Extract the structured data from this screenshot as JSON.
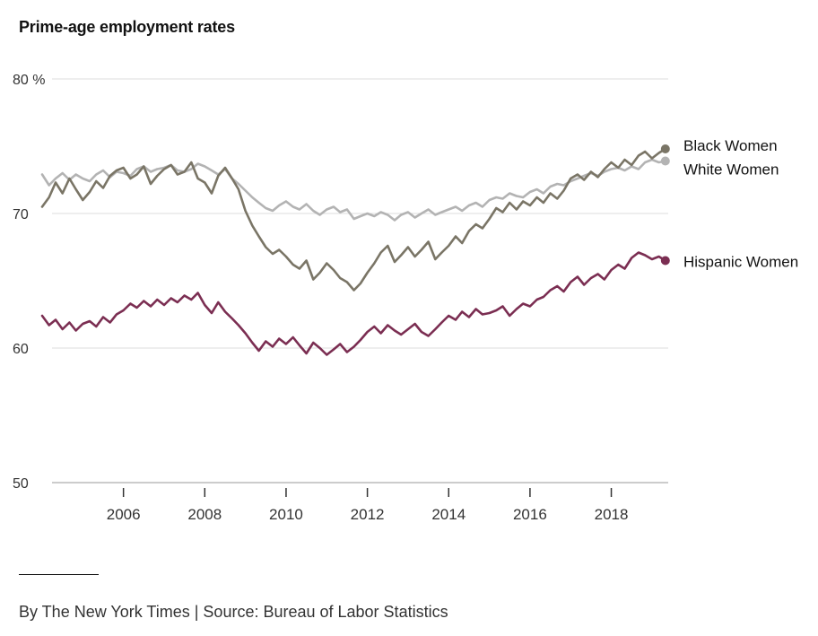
{
  "header": {
    "title": "Prime-age employment rates"
  },
  "footer": {
    "credit": "By The New York Times | Source: Bureau of Labor Statistics"
  },
  "chart_data": {
    "type": "line",
    "title": "Prime-age employment rates",
    "xlabel": "",
    "ylabel": "",
    "xlim": [
      2004.0,
      2019.4
    ],
    "ylim": [
      50,
      80
    ],
    "y_ticks": [
      {
        "value": 80,
        "label": "80 %"
      },
      {
        "value": 70,
        "label": "70"
      },
      {
        "value": 60,
        "label": "60"
      },
      {
        "value": 50,
        "label": "50"
      }
    ],
    "x_ticks": [
      {
        "value": 2006,
        "label": "2006"
      },
      {
        "value": 2008,
        "label": "2008"
      },
      {
        "value": 2010,
        "label": "2010"
      },
      {
        "value": 2012,
        "label": "2012"
      },
      {
        "value": 2014,
        "label": "2014"
      },
      {
        "value": 2016,
        "label": "2016"
      },
      {
        "value": 2018,
        "label": "2018"
      }
    ],
    "grid": true,
    "legend": "direct labels at line ends (right)",
    "series": [
      {
        "name": "White Women",
        "color": "#b3b3b3",
        "x": [
          2004.0,
          2004.17,
          2004.33,
          2004.5,
          2004.67,
          2004.83,
          2005.0,
          2005.17,
          2005.33,
          2005.5,
          2005.67,
          2005.83,
          2006.0,
          2006.17,
          2006.33,
          2006.5,
          2006.67,
          2006.83,
          2007.0,
          2007.17,
          2007.33,
          2007.5,
          2007.67,
          2007.83,
          2008.0,
          2008.17,
          2008.33,
          2008.5,
          2008.67,
          2008.83,
          2009.0,
          2009.17,
          2009.33,
          2009.5,
          2009.67,
          2009.83,
          2010.0,
          2010.17,
          2010.33,
          2010.5,
          2010.67,
          2010.83,
          2011.0,
          2011.17,
          2011.33,
          2011.5,
          2011.67,
          2011.83,
          2012.0,
          2012.17,
          2012.33,
          2012.5,
          2012.67,
          2012.83,
          2013.0,
          2013.17,
          2013.33,
          2013.5,
          2013.67,
          2013.83,
          2014.0,
          2014.17,
          2014.33,
          2014.5,
          2014.67,
          2014.83,
          2015.0,
          2015.17,
          2015.33,
          2015.5,
          2015.67,
          2015.83,
          2016.0,
          2016.17,
          2016.33,
          2016.5,
          2016.67,
          2016.83,
          2017.0,
          2017.17,
          2017.33,
          2017.5,
          2017.67,
          2017.83,
          2018.0,
          2018.17,
          2018.33,
          2018.5,
          2018.67,
          2018.83,
          2019.0,
          2019.17,
          2019.33
        ],
        "values": [
          72.9,
          72.1,
          72.6,
          73.0,
          72.5,
          72.9,
          72.6,
          72.4,
          72.9,
          73.2,
          72.7,
          73.1,
          73.0,
          72.8,
          73.3,
          73.5,
          73.1,
          73.3,
          73.4,
          73.6,
          73.2,
          73.1,
          73.3,
          73.7,
          73.5,
          73.2,
          72.9,
          73.3,
          72.6,
          72.2,
          71.7,
          71.2,
          70.8,
          70.4,
          70.2,
          70.6,
          70.9,
          70.5,
          70.3,
          70.7,
          70.2,
          69.9,
          70.3,
          70.5,
          70.1,
          70.3,
          69.6,
          69.8,
          70.0,
          69.8,
          70.1,
          69.9,
          69.5,
          69.9,
          70.1,
          69.7,
          70.0,
          70.3,
          69.9,
          70.1,
          70.3,
          70.5,
          70.2,
          70.6,
          70.8,
          70.5,
          71.0,
          71.2,
          71.1,
          71.5,
          71.3,
          71.2,
          71.6,
          71.8,
          71.5,
          72.0,
          72.2,
          72.1,
          72.4,
          72.6,
          72.8,
          73.0,
          72.8,
          73.1,
          73.3,
          73.4,
          73.2,
          73.5,
          73.3,
          73.8,
          74.0,
          73.8,
          73.9
        ],
        "end_label": "White Women"
      },
      {
        "name": "Black Women",
        "color": "#7a7566",
        "x": [
          2004.0,
          2004.17,
          2004.33,
          2004.5,
          2004.67,
          2004.83,
          2005.0,
          2005.17,
          2005.33,
          2005.5,
          2005.67,
          2005.83,
          2006.0,
          2006.17,
          2006.33,
          2006.5,
          2006.67,
          2006.83,
          2007.0,
          2007.17,
          2007.33,
          2007.5,
          2007.67,
          2007.83,
          2008.0,
          2008.17,
          2008.33,
          2008.5,
          2008.67,
          2008.83,
          2009.0,
          2009.17,
          2009.33,
          2009.5,
          2009.67,
          2009.83,
          2010.0,
          2010.17,
          2010.33,
          2010.5,
          2010.67,
          2010.83,
          2011.0,
          2011.17,
          2011.33,
          2011.5,
          2011.67,
          2011.83,
          2012.0,
          2012.17,
          2012.33,
          2012.5,
          2012.67,
          2012.83,
          2013.0,
          2013.17,
          2013.33,
          2013.5,
          2013.67,
          2013.83,
          2014.0,
          2014.17,
          2014.33,
          2014.5,
          2014.67,
          2014.83,
          2015.0,
          2015.17,
          2015.33,
          2015.5,
          2015.67,
          2015.83,
          2016.0,
          2016.17,
          2016.33,
          2016.5,
          2016.67,
          2016.83,
          2017.0,
          2017.17,
          2017.33,
          2017.5,
          2017.67,
          2017.83,
          2018.0,
          2018.17,
          2018.33,
          2018.5,
          2018.67,
          2018.83,
          2019.0,
          2019.17,
          2019.33
        ],
        "values": [
          70.5,
          71.2,
          72.3,
          71.5,
          72.6,
          71.8,
          71.0,
          71.6,
          72.4,
          71.9,
          72.8,
          73.2,
          73.4,
          72.6,
          72.9,
          73.5,
          72.2,
          72.8,
          73.3,
          73.6,
          72.9,
          73.1,
          73.8,
          72.6,
          72.3,
          71.5,
          72.8,
          73.4,
          72.6,
          71.8,
          70.2,
          69.1,
          68.3,
          67.5,
          67.0,
          67.3,
          66.8,
          66.2,
          65.9,
          66.5,
          65.1,
          65.6,
          66.3,
          65.8,
          65.2,
          64.9,
          64.3,
          64.8,
          65.6,
          66.3,
          67.1,
          67.6,
          66.4,
          66.9,
          67.5,
          66.8,
          67.3,
          67.9,
          66.6,
          67.1,
          67.6,
          68.3,
          67.8,
          68.7,
          69.2,
          68.9,
          69.6,
          70.4,
          70.1,
          70.8,
          70.3,
          70.9,
          70.6,
          71.2,
          70.8,
          71.5,
          71.1,
          71.7,
          72.6,
          72.9,
          72.5,
          73.1,
          72.7,
          73.3,
          73.8,
          73.4,
          74.0,
          73.6,
          74.3,
          74.6,
          74.1,
          74.5,
          74.8
        ],
        "end_label": "Black Women"
      },
      {
        "name": "Hispanic Women",
        "color": "#7b2e52",
        "x": [
          2004.0,
          2004.17,
          2004.33,
          2004.5,
          2004.67,
          2004.83,
          2005.0,
          2005.17,
          2005.33,
          2005.5,
          2005.67,
          2005.83,
          2006.0,
          2006.17,
          2006.33,
          2006.5,
          2006.67,
          2006.83,
          2007.0,
          2007.17,
          2007.33,
          2007.5,
          2007.67,
          2007.83,
          2008.0,
          2008.17,
          2008.33,
          2008.5,
          2008.67,
          2008.83,
          2009.0,
          2009.17,
          2009.33,
          2009.5,
          2009.67,
          2009.83,
          2010.0,
          2010.17,
          2010.33,
          2010.5,
          2010.67,
          2010.83,
          2011.0,
          2011.17,
          2011.33,
          2011.5,
          2011.67,
          2011.83,
          2012.0,
          2012.17,
          2012.33,
          2012.5,
          2012.67,
          2012.83,
          2013.0,
          2013.17,
          2013.33,
          2013.5,
          2013.67,
          2013.83,
          2014.0,
          2014.17,
          2014.33,
          2014.5,
          2014.67,
          2014.83,
          2015.0,
          2015.17,
          2015.33,
          2015.5,
          2015.67,
          2015.83,
          2016.0,
          2016.17,
          2016.33,
          2016.5,
          2016.67,
          2016.83,
          2017.0,
          2017.17,
          2017.33,
          2017.5,
          2017.67,
          2017.83,
          2018.0,
          2018.17,
          2018.33,
          2018.5,
          2018.67,
          2018.83,
          2019.0,
          2019.17,
          2019.33
        ],
        "values": [
          62.4,
          61.7,
          62.1,
          61.4,
          61.9,
          61.3,
          61.8,
          62.0,
          61.6,
          62.3,
          61.9,
          62.5,
          62.8,
          63.3,
          63.0,
          63.5,
          63.1,
          63.6,
          63.2,
          63.7,
          63.4,
          63.9,
          63.6,
          64.1,
          63.2,
          62.6,
          63.4,
          62.7,
          62.2,
          61.7,
          61.1,
          60.4,
          59.8,
          60.5,
          60.1,
          60.7,
          60.3,
          60.8,
          60.2,
          59.6,
          60.4,
          60.0,
          59.5,
          59.9,
          60.3,
          59.7,
          60.1,
          60.6,
          61.2,
          61.6,
          61.1,
          61.7,
          61.3,
          61.0,
          61.4,
          61.8,
          61.2,
          60.9,
          61.4,
          61.9,
          62.4,
          62.1,
          62.7,
          62.3,
          62.9,
          62.5,
          62.6,
          62.8,
          63.1,
          62.4,
          62.9,
          63.3,
          63.1,
          63.6,
          63.8,
          64.3,
          64.6,
          64.2,
          64.9,
          65.3,
          64.7,
          65.2,
          65.5,
          65.1,
          65.8,
          66.2,
          65.9,
          66.7,
          67.1,
          66.9,
          66.6,
          66.8,
          66.5
        ],
        "end_label": "Hispanic Women"
      }
    ]
  }
}
